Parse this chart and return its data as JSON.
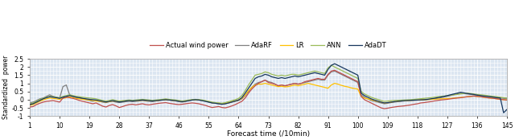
{
  "title": "",
  "xlabel": "Forecast time (/10min)",
  "ylabel": "Standardized  power",
  "xlim": [
    1,
    145
  ],
  "ylim": [
    -1,
    2.5
  ],
  "yticks": [
    -1,
    -0.5,
    0,
    0.5,
    1,
    1.5,
    2,
    2.5
  ],
  "xticks": [
    1,
    10,
    19,
    28,
    37,
    46,
    55,
    64,
    73,
    82,
    91,
    100,
    109,
    118,
    127,
    136,
    145
  ],
  "background_color": "#dce6f1",
  "grid_color": "#ffffff",
  "series_colors": {
    "actual": "#c0504d",
    "adarf": "#808080",
    "lr": "#ffc000",
    "ann": "#9bbb59",
    "adadt": "#17375e"
  },
  "legend_labels": [
    "Actual wind power",
    "AdaRF",
    "LR",
    "ANN",
    "AdaDT"
  ],
  "linewidth": 0.9,
  "actual": [
    -0.45,
    -0.42,
    -0.3,
    -0.22,
    -0.15,
    -0.1,
    -0.08,
    -0.05,
    -0.1,
    -0.15,
    0.1,
    0.15,
    0.12,
    0.08,
    0.02,
    -0.05,
    -0.1,
    -0.15,
    -0.2,
    -0.25,
    -0.2,
    -0.3,
    -0.4,
    -0.45,
    -0.35,
    -0.3,
    -0.38,
    -0.48,
    -0.42,
    -0.35,
    -0.3,
    -0.28,
    -0.32,
    -0.28,
    -0.25,
    -0.3,
    -0.32,
    -0.28,
    -0.25,
    -0.22,
    -0.2,
    -0.18,
    -0.22,
    -0.25,
    -0.28,
    -0.3,
    -0.28,
    -0.25,
    -0.22,
    -0.2,
    -0.22,
    -0.25,
    -0.3,
    -0.35,
    -0.42,
    -0.48,
    -0.45,
    -0.42,
    -0.48,
    -0.5,
    -0.45,
    -0.38,
    -0.3,
    -0.2,
    -0.1,
    0.1,
    0.4,
    0.65,
    0.85,
    1.0,
    1.1,
    1.2,
    1.05,
    1.0,
    0.95,
    0.85,
    0.9,
    0.85,
    0.9,
    0.95,
    1.0,
    0.95,
    1.0,
    1.1,
    1.15,
    1.2,
    1.25,
    1.3,
    1.25,
    1.25,
    1.55,
    1.75,
    1.8,
    1.7,
    1.6,
    1.5,
    1.4,
    1.3,
    1.2,
    1.1,
    0.2,
    0.0,
    -0.1,
    -0.2,
    -0.3,
    -0.4,
    -0.5,
    -0.55,
    -0.52,
    -0.48,
    -0.45,
    -0.42,
    -0.4,
    -0.38,
    -0.35,
    -0.32,
    -0.28,
    -0.25,
    -0.2,
    -0.18,
    -0.15,
    -0.12,
    -0.08,
    -0.05,
    -0.02,
    0.0,
    0.02,
    0.05,
    0.08,
    0.1,
    0.12,
    0.15,
    0.18,
    0.2,
    0.22,
    0.2,
    0.18,
    0.15,
    0.12,
    0.1,
    0.08,
    0.05,
    0.02,
    0.0,
    -0.02
  ],
  "adarf": [
    -0.2,
    -0.15,
    -0.05,
    0.05,
    0.1,
    0.2,
    0.3,
    0.2,
    0.15,
    0.1,
    0.8,
    0.9,
    0.3,
    0.2,
    0.15,
    0.1,
    0.05,
    0.0,
    -0.05,
    -0.1,
    -0.05,
    -0.1,
    -0.15,
    -0.18,
    -0.12,
    -0.1,
    -0.15,
    -0.18,
    -0.15,
    -0.12,
    -0.1,
    -0.12,
    -0.1,
    -0.08,
    -0.05,
    -0.08,
    -0.1,
    -0.12,
    -0.08,
    -0.05,
    -0.02,
    0.0,
    -0.02,
    -0.05,
    -0.08,
    -0.12,
    -0.15,
    -0.1,
    -0.05,
    -0.02,
    0.0,
    -0.02,
    -0.05,
    -0.1,
    -0.15,
    -0.2,
    -0.22,
    -0.25,
    -0.28,
    -0.25,
    -0.2,
    -0.15,
    -0.1,
    -0.05,
    0.05,
    0.25,
    0.5,
    0.75,
    0.95,
    1.05,
    1.1,
    1.2,
    1.1,
    1.05,
    0.95,
    0.85,
    0.9,
    0.85,
    0.9,
    0.95,
    1.0,
    0.95,
    1.0,
    1.05,
    1.1,
    1.15,
    1.2,
    1.25,
    1.2,
    1.2,
    1.5,
    1.7,
    1.75,
    1.65,
    1.55,
    1.45,
    1.35,
    1.25,
    1.15,
    1.05,
    0.3,
    0.15,
    0.05,
    -0.05,
    -0.1,
    -0.15,
    -0.2,
    -0.25,
    -0.22,
    -0.18,
    -0.15,
    -0.12,
    -0.1,
    -0.08,
    -0.06,
    -0.05,
    -0.04,
    -0.03,
    -0.02,
    -0.01,
    0.0,
    0.02,
    0.05,
    0.08,
    0.12,
    0.16,
    0.2,
    0.25,
    0.3,
    0.35,
    0.4,
    0.38,
    0.35,
    0.32,
    0.3,
    0.28,
    0.25,
    0.22,
    0.2,
    0.18,
    0.15,
    0.12,
    0.1,
    0.08,
    0.06
  ],
  "lr": [
    -0.35,
    -0.3,
    -0.2,
    -0.1,
    -0.02,
    0.05,
    0.1,
    0.08,
    0.05,
    0.02,
    0.08,
    0.12,
    0.18,
    0.12,
    0.08,
    0.05,
    0.02,
    0.0,
    -0.02,
    -0.05,
    -0.08,
    -0.1,
    -0.12,
    -0.15,
    -0.12,
    -0.08,
    -0.1,
    -0.12,
    -0.1,
    -0.08,
    -0.06,
    -0.08,
    -0.06,
    -0.05,
    -0.03,
    -0.05,
    -0.06,
    -0.08,
    -0.06,
    -0.04,
    -0.02,
    0.0,
    -0.02,
    -0.04,
    -0.06,
    -0.08,
    -0.1,
    -0.08,
    -0.04,
    -0.02,
    0.0,
    -0.02,
    -0.04,
    -0.08,
    -0.12,
    -0.18,
    -0.2,
    -0.22,
    -0.25,
    -0.22,
    -0.18,
    -0.12,
    -0.08,
    -0.02,
    0.08,
    0.28,
    0.55,
    0.75,
    0.9,
    0.95,
    0.95,
    1.0,
    0.95,
    0.9,
    0.85,
    0.8,
    0.82,
    0.78,
    0.8,
    0.85,
    0.9,
    0.85,
    0.9,
    0.95,
    1.0,
    0.95,
    0.9,
    0.85,
    0.8,
    0.75,
    0.7,
    0.9,
    1.0,
    0.95,
    0.88,
    0.82,
    0.78,
    0.72,
    0.68,
    0.65,
    0.2,
    0.1,
    0.05,
    0.0,
    -0.05,
    -0.1,
    -0.15,
    -0.2,
    -0.18,
    -0.15,
    -0.12,
    -0.1,
    -0.08,
    -0.06,
    -0.05,
    -0.04,
    -0.03,
    -0.02,
    -0.01,
    0.0,
    0.01,
    0.02,
    0.03,
    0.04,
    0.05,
    0.06,
    0.07,
    0.08,
    0.1,
    0.12,
    0.14,
    0.16,
    0.18,
    0.2,
    0.22,
    0.2,
    0.18,
    0.15,
    0.12,
    0.1,
    0.08,
    0.05,
    0.02,
    0.0,
    -0.02
  ],
  "ann": [
    -0.25,
    -0.2,
    -0.1,
    0.0,
    0.08,
    0.15,
    0.2,
    0.18,
    0.15,
    0.12,
    0.2,
    0.25,
    0.3,
    0.25,
    0.2,
    0.18,
    0.15,
    0.12,
    0.1,
    0.08,
    0.05,
    0.0,
    -0.05,
    -0.08,
    -0.05,
    0.0,
    -0.05,
    -0.08,
    -0.06,
    -0.04,
    -0.02,
    -0.04,
    -0.02,
    0.0,
    0.02,
    0.0,
    -0.02,
    -0.04,
    -0.02,
    0.0,
    0.02,
    0.05,
    0.02,
    0.0,
    -0.02,
    -0.05,
    -0.08,
    -0.05,
    -0.02,
    0.0,
    0.02,
    0.0,
    -0.02,
    -0.06,
    -0.1,
    -0.15,
    -0.18,
    -0.2,
    -0.22,
    -0.18,
    -0.12,
    -0.06,
    0.0,
    0.08,
    0.25,
    0.55,
    0.9,
    1.2,
    1.5,
    1.55,
    1.6,
    1.7,
    1.65,
    1.55,
    1.5,
    1.45,
    1.5,
    1.45,
    1.5,
    1.55,
    1.55,
    1.5,
    1.55,
    1.6,
    1.65,
    1.7,
    1.75,
    1.7,
    1.65,
    1.6,
    1.95,
    2.1,
    2.0,
    1.9,
    1.8,
    1.7,
    1.6,
    1.5,
    1.4,
    1.3,
    0.5,
    0.35,
    0.25,
    0.15,
    0.08,
    0.02,
    -0.05,
    -0.1,
    -0.08,
    -0.06,
    -0.05,
    -0.04,
    -0.03,
    -0.02,
    -0.01,
    0.0,
    0.02,
    0.04,
    0.06,
    0.08,
    0.1,
    0.12,
    0.15,
    0.18,
    0.2,
    0.22,
    0.25,
    0.28,
    0.3,
    0.32,
    0.35,
    0.38,
    0.4,
    0.38,
    0.35,
    0.32,
    0.3,
    0.28,
    0.25,
    0.22,
    0.2,
    0.18,
    0.15,
    0.12,
    0.1
  ],
  "adadt": [
    -0.3,
    -0.25,
    -0.15,
    -0.05,
    0.05,
    0.12,
    0.18,
    0.15,
    0.12,
    0.08,
    0.15,
    0.2,
    0.25,
    0.2,
    0.15,
    0.12,
    0.08,
    0.05,
    0.02,
    0.0,
    -0.02,
    -0.06,
    -0.1,
    -0.14,
    -0.1,
    -0.06,
    -0.1,
    -0.14,
    -0.12,
    -0.08,
    -0.06,
    -0.08,
    -0.06,
    -0.04,
    -0.02,
    -0.04,
    -0.06,
    -0.08,
    -0.06,
    -0.04,
    -0.02,
    0.0,
    -0.02,
    -0.04,
    -0.06,
    -0.1,
    -0.12,
    -0.1,
    -0.06,
    -0.02,
    0.0,
    -0.02,
    -0.06,
    -0.1,
    -0.15,
    -0.2,
    -0.22,
    -0.25,
    -0.28,
    -0.25,
    -0.2,
    -0.14,
    -0.08,
    -0.02,
    0.12,
    0.4,
    0.7,
    1.0,
    1.3,
    1.4,
    1.45,
    1.55,
    1.5,
    1.4,
    1.35,
    1.3,
    1.35,
    1.3,
    1.35,
    1.4,
    1.45,
    1.4,
    1.45,
    1.5,
    1.55,
    1.6,
    1.65,
    1.6,
    1.55,
    1.5,
    1.85,
    2.1,
    2.2,
    2.1,
    2.0,
    1.9,
    1.8,
    1.7,
    1.6,
    1.5,
    0.4,
    0.25,
    0.15,
    0.05,
    -0.02,
    -0.08,
    -0.15,
    -0.2,
    -0.18,
    -0.15,
    -0.12,
    -0.1,
    -0.08,
    -0.06,
    -0.05,
    -0.04,
    -0.03,
    -0.02,
    -0.01,
    0.0,
    0.02,
    0.05,
    0.08,
    0.12,
    0.16,
    0.2,
    0.25,
    0.3,
    0.35,
    0.4,
    0.45,
    0.42,
    0.38,
    0.35,
    0.32,
    0.28,
    0.25,
    0.22,
    0.2,
    0.18,
    0.15,
    0.12,
    0.1,
    -0.8,
    -0.6
  ]
}
